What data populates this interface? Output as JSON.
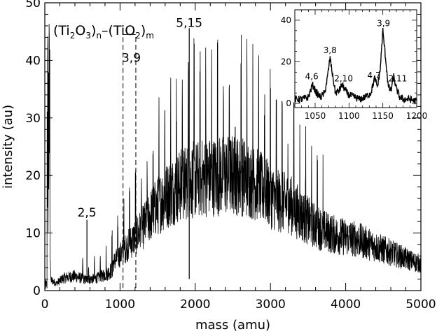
{
  "chart_data": [
    {
      "type": "line",
      "title": "",
      "xlabel": "mass (amu)",
      "ylabel": "intensity (au)",
      "xlim": [
        0,
        5000
      ],
      "ylim": [
        0,
        50
      ],
      "x_ticks": [
        0,
        1000,
        2000,
        3000,
        4000,
        5000
      ],
      "y_ticks": [
        0,
        10,
        20,
        30,
        40,
        50
      ],
      "grid": false,
      "formula": {
        "open1": "(Ti",
        "sub1": "2",
        "mid1": "O",
        "sub2": "3",
        "close1": ")",
        "n": "n",
        "dash": "–",
        "open2": "(TiO",
        "sub3": "2",
        "close2": ")",
        "m": "m"
      },
      "annotations": [
        {
          "label": "2,5",
          "x": 560,
          "y": 12.6
        },
        {
          "label": "5,15",
          "x": 1920,
          "y": 45.6
        },
        {
          "label": "3,9",
          "x": 1150,
          "y": 39.5
        }
      ],
      "highlight_box": {
        "x": [
          1040,
          1210
        ],
        "y": [
          0,
          44.5
        ]
      },
      "series": [
        {
          "x": [
            0,
            40,
            80,
            150,
            250,
            400,
            550,
            700,
            850,
            1000,
            1150,
            1300,
            1450,
            1600,
            1750,
            1900,
            2050,
            2200,
            2350,
            2500,
            2650,
            2800,
            2950,
            3100,
            3250,
            3400,
            3550,
            3700,
            3850,
            4000,
            4150,
            4300,
            4450,
            4600,
            4750,
            4900,
            5000
          ],
          "y": [
            1.5,
            40,
            3,
            2,
            3.5,
            4,
            3,
            3.5,
            5,
            8,
            11,
            14,
            18,
            21,
            23,
            24.5,
            25,
            25.5,
            25.8,
            26,
            25.5,
            24,
            22,
            20,
            19.5,
            17,
            15,
            13.5,
            12.5,
            12,
            11.5,
            10.5,
            9.5,
            8.5,
            7.5,
            6.5,
            6
          ]
        }
      ]
    },
    {
      "type": "line",
      "title": "",
      "xlabel": "",
      "ylabel": "",
      "xlim": [
        1020,
        1200
      ],
      "ylim": [
        -2,
        45
      ],
      "x_ticks": [
        1050,
        1100,
        1150,
        1200
      ],
      "y_ticks": [
        0,
        20,
        40
      ],
      "grid": false,
      "annotations": [
        {
          "label": "4,6",
          "x": 1045,
          "y": 11
        },
        {
          "label": "3,8",
          "x": 1072,
          "y": 23.5
        },
        {
          "label": "2,10",
          "x": 1092,
          "y": 10
        },
        {
          "label": "4,7",
          "x": 1137,
          "y": 11.5
        },
        {
          "label": "3,9",
          "x": 1151,
          "y": 36.5
        },
        {
          "label": "2,11",
          "x": 1172,
          "y": 10
        }
      ],
      "series": [
        {
          "x": [
            1020,
            1030,
            1040,
            1046,
            1052,
            1058,
            1064,
            1068,
            1072,
            1076,
            1080,
            1085,
            1090,
            1095,
            1100,
            1108,
            1116,
            1124,
            1132,
            1138,
            1142,
            1146,
            1150,
            1154,
            1158,
            1162,
            1166,
            1170,
            1175,
            1180,
            1190,
            1200
          ],
          "y": [
            2,
            2,
            3,
            9,
            5,
            3,
            5,
            12,
            22,
            13,
            5,
            6,
            9,
            6,
            4,
            3,
            2,
            3,
            5,
            12,
            8,
            16,
            35,
            22,
            8,
            6,
            13,
            7,
            3,
            2,
            2,
            1
          ]
        }
      ]
    }
  ]
}
